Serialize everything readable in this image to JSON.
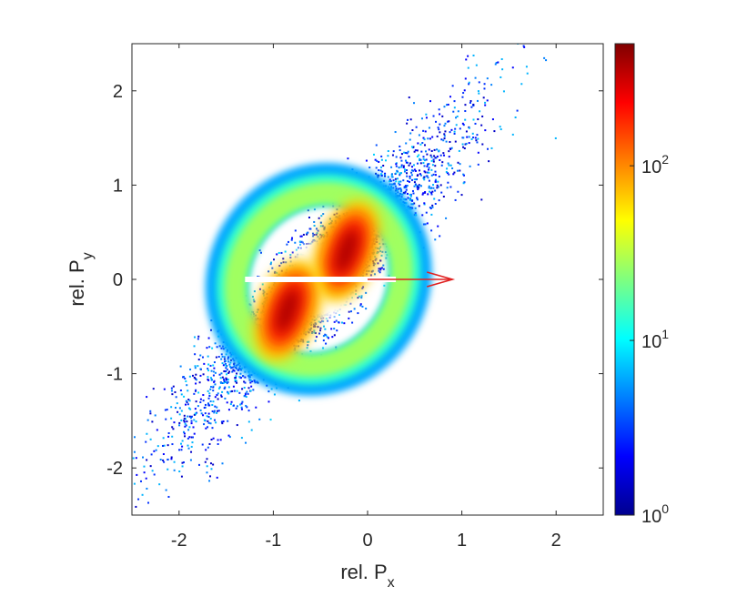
{
  "chart_data": {
    "type": "heatmap",
    "xlabel_base": "rel. P",
    "xlabel_sub": "x",
    "ylabel_base": "rel. P",
    "ylabel_sub": "y",
    "xlim": [
      -2.5,
      2.5
    ],
    "ylim": [
      -2.5,
      2.5
    ],
    "xticks": [
      -2,
      -1,
      0,
      1,
      2
    ],
    "yticks": [
      -2,
      -1,
      0,
      1,
      2
    ],
    "xtick_labels": [
      "-2",
      "-1",
      "0",
      "1",
      "2"
    ],
    "ytick_labels": [
      "-2",
      "-1",
      "0",
      "1",
      "2"
    ],
    "grid": false,
    "colorscale": "jet",
    "colorbar": {
      "scale": "log",
      "range": [
        1,
        500
      ],
      "ticks": [
        1,
        10,
        100
      ],
      "tick_labels": [
        {
          "base": "10",
          "exp": "0"
        },
        {
          "base": "10",
          "exp": "1"
        },
        {
          "base": "10",
          "exp": "2"
        }
      ]
    },
    "features": [
      {
        "name": "upper-right lobe",
        "center": [
          -0.22,
          0.3
        ],
        "peak_counts": 500
      },
      {
        "name": "lower-left lobe",
        "center": [
          -0.85,
          -0.33
        ],
        "peak_counts": 500
      }
    ],
    "annotation": {
      "type": "arrow",
      "color": "#e02020",
      "from": [
        0.0,
        0.0
      ],
      "to": [
        0.9,
        0.0
      ]
    }
  }
}
